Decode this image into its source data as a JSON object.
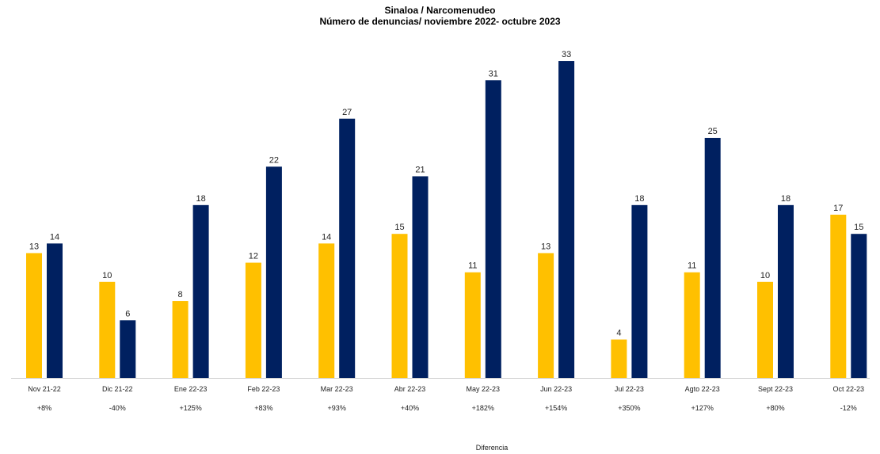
{
  "chart_data": {
    "type": "bar",
    "title": "Sinaloa / Narcomenudeo",
    "subtitle": "Número de denuncias/ noviembre 2022- octubre 2023",
    "xlabel": "Diferencia",
    "categories": [
      "Nov 21-22",
      "Dic 21-22",
      "Ene 22-23",
      "Feb 22-23",
      "Mar 22-23",
      "Abr 22-23",
      "May 22-23",
      "Jun 22-23",
      "Jul 22-23",
      "Agto 22-23",
      "Sept 22-23",
      "Oct 22-23"
    ],
    "differences": [
      "+8%",
      "-40%",
      "+125%",
      "+83%",
      "+93%",
      "+40%",
      "+182%",
      "+154%",
      "+350%",
      "+127%",
      "+80%",
      "-12%"
    ],
    "series": [
      {
        "color": "#FFC000",
        "values": [
          13,
          10,
          8,
          12,
          14,
          15,
          11,
          13,
          4,
          11,
          10,
          17
        ]
      },
      {
        "color": "#002060",
        "values": [
          14,
          6,
          18,
          22,
          27,
          21,
          31,
          33,
          18,
          25,
          18,
          15
        ]
      }
    ],
    "ylim": [
      0,
      33
    ],
    "grid": false,
    "legend": "none"
  }
}
